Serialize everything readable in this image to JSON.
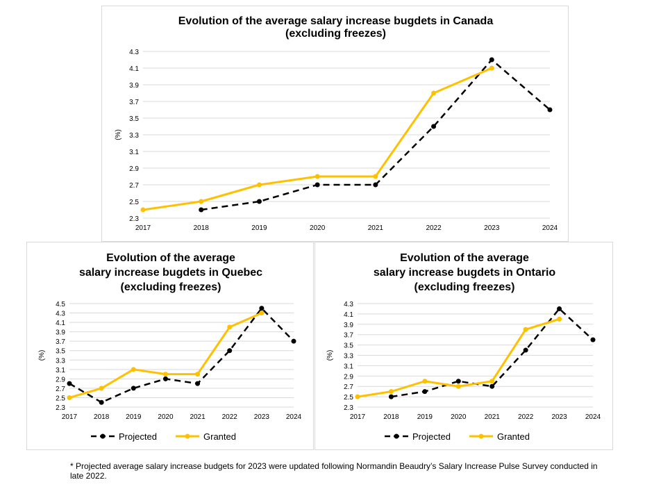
{
  "footnote": "* Projected average salary increase budgets for 2023 were updated following Normandin Beaudry’s Salary Increase Pulse Survey conducted in late 2022.",
  "colors": {
    "projected": "#000000",
    "granted": "#FFC000",
    "grid": "#d9d9d9"
  },
  "chart_data": [
    {
      "type": "line",
      "title_lines": [
        "Evolution of the average salary increase bugdets in Canada",
        "(excluding freezes)"
      ],
      "ylabel": "(%)",
      "categories": [
        "2017",
        "2018",
        "2019",
        "2020",
        "2021",
        "2022",
        "2023",
        "2024"
      ],
      "yticks": [
        "2.3",
        "2.5",
        "2.7",
        "2.9",
        "3.1",
        "3.3",
        "3.5",
        "3.7",
        "3.9",
        "4.1",
        "4.3"
      ],
      "ylim": [
        2.3,
        4.3
      ],
      "grid": true,
      "legend": "bottom (partially hidden)",
      "series": [
        {
          "name": "Projected",
          "style": "dashed",
          "values": [
            null,
            2.4,
            2.5,
            2.7,
            2.7,
            3.4,
            4.2,
            3.6
          ]
        },
        {
          "name": "Granted",
          "style": "solid",
          "values": [
            2.4,
            2.5,
            2.7,
            2.8,
            2.8,
            3.8,
            4.1,
            null
          ]
        }
      ]
    },
    {
      "type": "line",
      "title_lines": [
        "Evolution of the average",
        "salary increase bugdets in Quebec",
        "(excluding freezes)"
      ],
      "ylabel": "(%)",
      "categories": [
        "2017",
        "2018",
        "2019",
        "2020",
        "2021",
        "2022",
        "2023",
        "2024"
      ],
      "yticks": [
        "2.3",
        "2.5",
        "2.7",
        "2.9",
        "3.1",
        "3.3",
        "3.5",
        "3.7",
        "3.9",
        "4.1",
        "4.3",
        "4.5"
      ],
      "ylim": [
        2.3,
        4.5
      ],
      "grid": true,
      "legend": "bottom",
      "series": [
        {
          "name": "Projected",
          "style": "dashed",
          "values": [
            2.8,
            2.4,
            2.7,
            2.9,
            2.8,
            3.5,
            4.4,
            3.7
          ]
        },
        {
          "name": "Granted",
          "style": "solid",
          "values": [
            2.5,
            2.7,
            3.1,
            3.0,
            3.0,
            4.0,
            4.3,
            null
          ]
        }
      ]
    },
    {
      "type": "line",
      "title_lines": [
        "Evolution of the average",
        "salary increase bugdets in Ontario",
        "(excluding freezes)"
      ],
      "ylabel": "(%)",
      "categories": [
        "2017",
        "2018",
        "2019",
        "2020",
        "2021",
        "2022",
        "2023",
        "2024"
      ],
      "yticks": [
        "2.3",
        "2.5",
        "2.7",
        "2.9",
        "3.1",
        "3.3",
        "3.5",
        "3.7",
        "3.9",
        "4.1",
        "4.3"
      ],
      "ylim": [
        2.3,
        4.3
      ],
      "grid": true,
      "legend": "bottom",
      "series": [
        {
          "name": "Projected",
          "style": "dashed",
          "values": [
            null,
            2.5,
            2.6,
            2.8,
            2.7,
            3.4,
            4.2,
            3.6
          ]
        },
        {
          "name": "Granted",
          "style": "solid",
          "values": [
            2.5,
            2.6,
            2.8,
            2.7,
            2.8,
            3.8,
            4.0,
            null
          ]
        }
      ]
    }
  ]
}
